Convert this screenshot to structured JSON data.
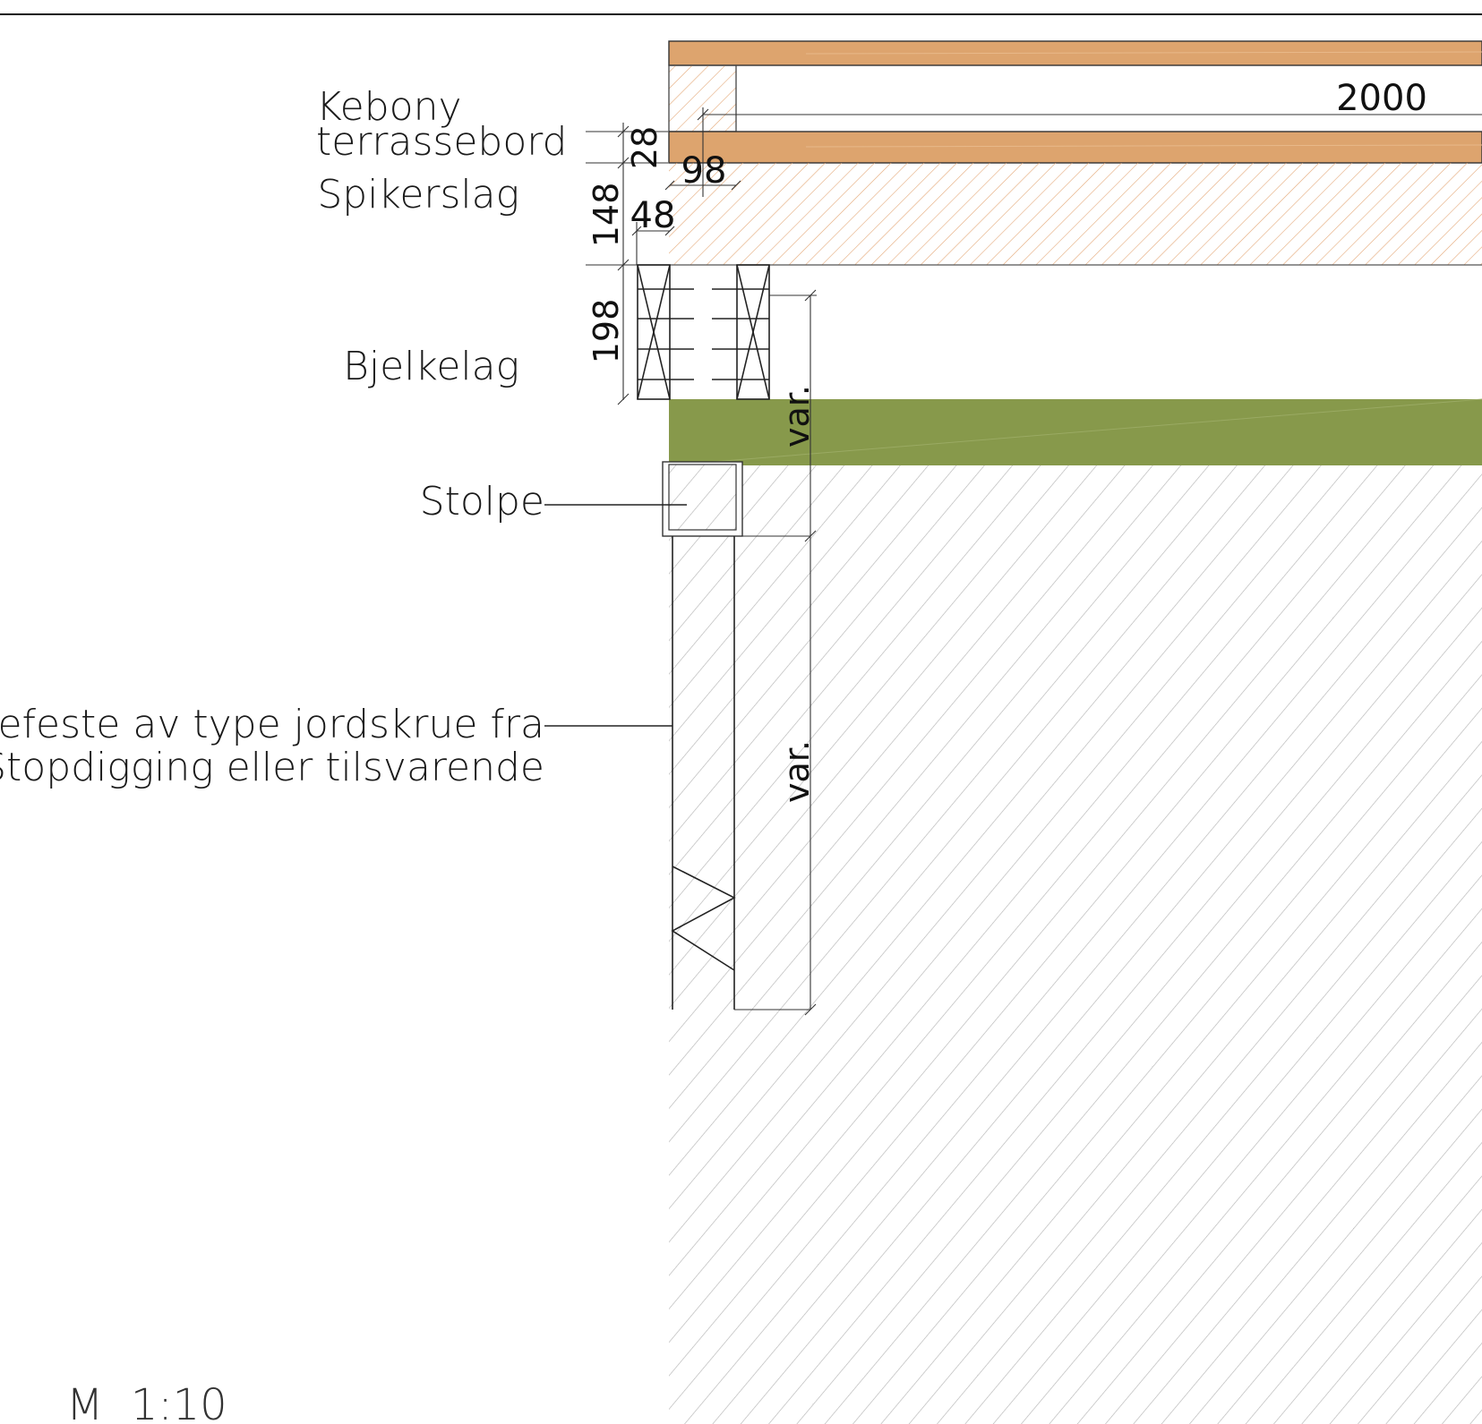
{
  "labels": {
    "decking": "Kebony\nterrassebord",
    "decking_line1": "Kebony",
    "decking_line2": "terrassebord",
    "nailing_layer": "Spikerslag",
    "joist_layer": "Bjelkelag",
    "post": "Stolpe",
    "post_anchor_line1": "Stolpefeste av type jordskrue fra",
    "post_anchor_line2": "Stopdigging eller tilsvarende"
  },
  "dimensions": {
    "span": "2000",
    "board_thickness": "28",
    "board_width": "98",
    "nailing_height": "148",
    "nailing_width": "48",
    "joist_height": "198",
    "var_upper": "var.",
    "var_lower": "var."
  },
  "scale": "M  1:10",
  "colors": {
    "wood": "#dda46e",
    "wood_hatch": "#e0a878",
    "grass": "#87994b",
    "soil_hatch": "#b9b9b9",
    "line": "#222222"
  }
}
